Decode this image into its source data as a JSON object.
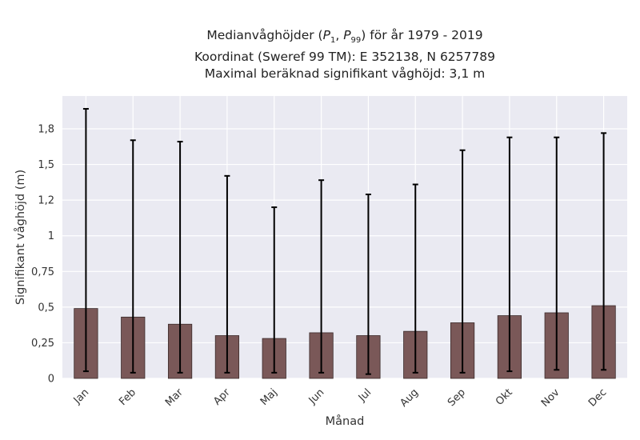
{
  "chart_data": {
    "type": "bar",
    "title_lines": [
      "Medianvåghöjder (P1, P99) för år 1979 - 2019",
      "Koordinat (Sweref 99 TM): E 352138, N 6257789",
      "Maximal beräknad signifikant våghöjd: 3,1 m"
    ],
    "title_parts": {
      "pre": "Medianvåghöjder (",
      "p1": "P",
      "p1_sub": "1",
      "sep": ", ",
      "p99": "P",
      "p99_sub": "99",
      "post": ") för år 1979 - 2019"
    },
    "xlabel": "Månad",
    "ylabel": "Signifikant våghöjd (m)",
    "categories": [
      "Jan",
      "Feb",
      "Mar",
      "Apr",
      "Maj",
      "Jun",
      "Jul",
      "Aug",
      "Sep",
      "Okt",
      "Nov",
      "Dec"
    ],
    "values": [
      0.49,
      0.43,
      0.38,
      0.3,
      0.28,
      0.32,
      0.3,
      0.33,
      0.39,
      0.44,
      0.46,
      0.51
    ],
    "error_low": [
      0.05,
      0.04,
      0.04,
      0.04,
      0.04,
      0.04,
      0.03,
      0.04,
      0.04,
      0.05,
      0.06,
      0.06
    ],
    "error_high": [
      1.89,
      1.67,
      1.66,
      1.42,
      1.2,
      1.39,
      1.29,
      1.36,
      1.6,
      1.69,
      1.69,
      1.72
    ],
    "yticks": [
      {
        "value": 0,
        "label": "0"
      },
      {
        "value": 0.25,
        "label": "0,25"
      },
      {
        "value": 0.5,
        "label": "0,5"
      },
      {
        "value": 0.75,
        "label": "0,75"
      },
      {
        "value": 1.0,
        "label": "1"
      },
      {
        "value": 1.25,
        "label": "1,2"
      },
      {
        "value": 1.5,
        "label": "1,5"
      },
      {
        "value": 1.75,
        "label": "1,8"
      }
    ],
    "ylim": [
      0,
      1.98
    ],
    "grid": true,
    "colors": {
      "bar_fill": "#7a5858",
      "bar_edge": "#3a2a2a",
      "error_bar": "#000000",
      "background": "#eaeaf2",
      "grid": "#ffffff"
    }
  }
}
